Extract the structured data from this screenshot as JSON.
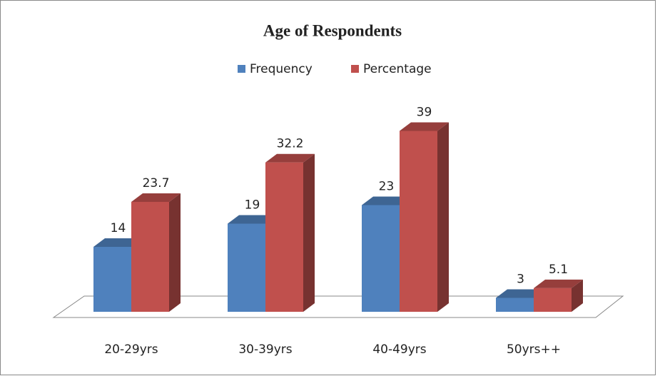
{
  "chart_data": {
    "type": "bar3d",
    "title": "Age of Respondents",
    "categories": [
      "20-29yrs",
      "30-39yrs",
      "40-49yrs",
      "50yrs++"
    ],
    "series": [
      {
        "name": "Frequency",
        "color": "#4f81bd",
        "values": [
          14,
          19,
          23,
          3
        ]
      },
      {
        "name": "Percentage",
        "color": "#c0504d",
        "values": [
          23.7,
          32.2,
          39,
          5.1
        ]
      }
    ]
  }
}
